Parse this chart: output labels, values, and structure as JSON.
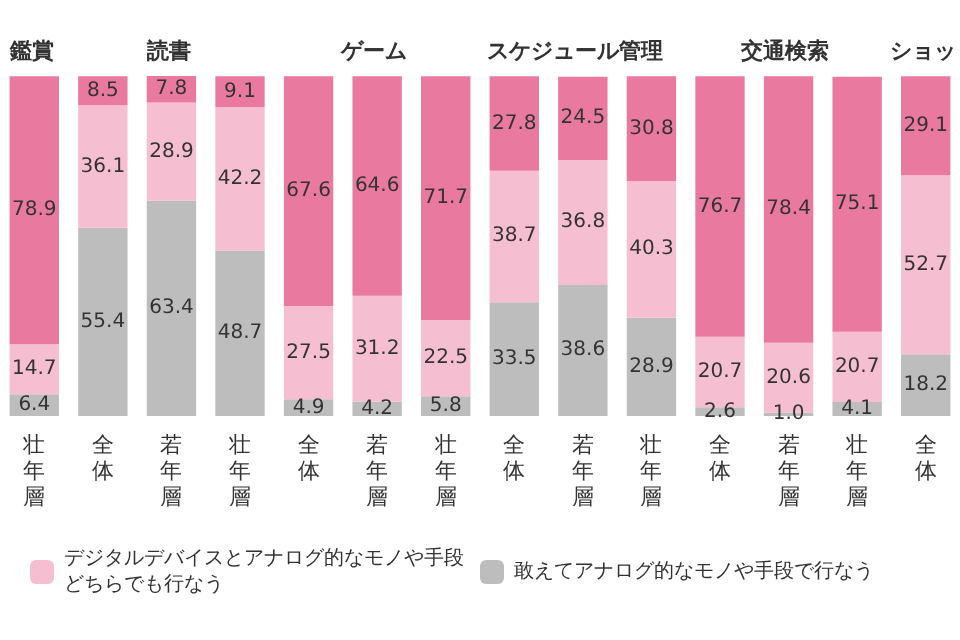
{
  "chart_data": {
    "type": "bar",
    "stacked": true,
    "tick_labels": "x",
    "grid": false,
    "legend": "bottom",
    "annotations": [
      "鑑賞",
      "読書",
      "ゲーム",
      "スケジュール管理",
      "交通検索",
      "ショッ"
    ],
    "categories": [
      "壮年層",
      "全体",
      "若年層",
      "壮年層",
      "全体",
      "若年層",
      "壮年層",
      "全体",
      "若年層",
      "壮年層",
      "全体",
      "若年層",
      "壮年層",
      "全体"
    ],
    "series": [
      {
        "name": "敢えてアナログ的なモノや手段で行なう",
        "color": "#bdbdbd",
        "values": [
          6.4,
          55.4,
          63.4,
          48.7,
          4.9,
          4.2,
          5.8,
          33.5,
          38.6,
          28.9,
          2.6,
          1.0,
          4.1,
          18.2
        ],
        "value_labels": [
          "6.4",
          "55.4",
          "63.4",
          "48.7",
          "4.9",
          "4.2",
          "5.8",
          "33.5",
          "38.6",
          "28.9",
          "2.6",
          "1.0",
          "4.1",
          "18.2"
        ]
      },
      {
        "name": "デジタルデバイスとアナログ的なモノや手段どちらでも行なう",
        "color": "#f6bfd1",
        "values": [
          14.7,
          36.1,
          28.9,
          42.2,
          27.5,
          31.2,
          22.5,
          38.7,
          36.8,
          40.3,
          20.7,
          20.6,
          20.7,
          52.7
        ],
        "value_labels": [
          "14.7",
          "36.1",
          "28.9",
          "42.2",
          "27.5",
          "31.2",
          "22.5",
          "38.7",
          "36.8",
          "40.3",
          "20.7",
          "20.6",
          "20.7",
          "52.7"
        ]
      },
      {
        "color": "#e9799e",
        "values": [
          78.9,
          8.5,
          7.8,
          9.1,
          67.6,
          64.6,
          71.7,
          27.8,
          24.5,
          30.8,
          76.7,
          78.4,
          75.1,
          29.1
        ],
        "value_labels": [
          "78.9",
          "8.5",
          "7.8",
          "9.1",
          "67.6",
          "64.6",
          "71.7",
          "27.8",
          "24.5",
          "30.8",
          "76.7",
          "78.4",
          "75.1",
          "29.1"
        ]
      }
    ]
  }
}
